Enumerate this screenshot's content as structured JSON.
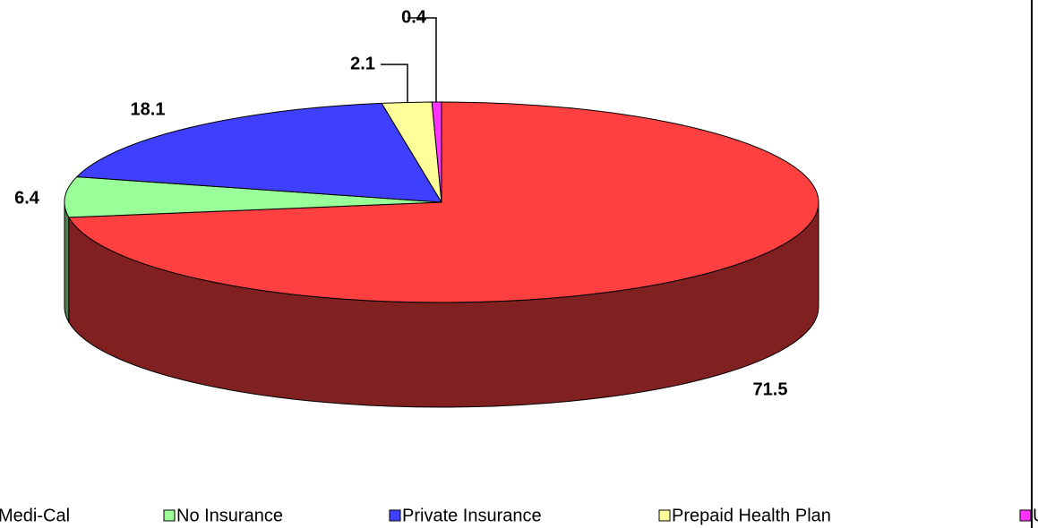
{
  "chart_data": {
    "type": "pie",
    "categories": [
      "Medi-Cal",
      "No Insurance",
      "Private Insurance",
      "Prepaid Health Plan",
      "Unknown"
    ],
    "values": [
      71.5,
      6.4,
      18.1,
      2.1,
      0.4
    ],
    "colors": [
      "#ff4040",
      "#99ff99",
      "#3f3fff",
      "#ffff99",
      "#ff33ff"
    ]
  }
}
